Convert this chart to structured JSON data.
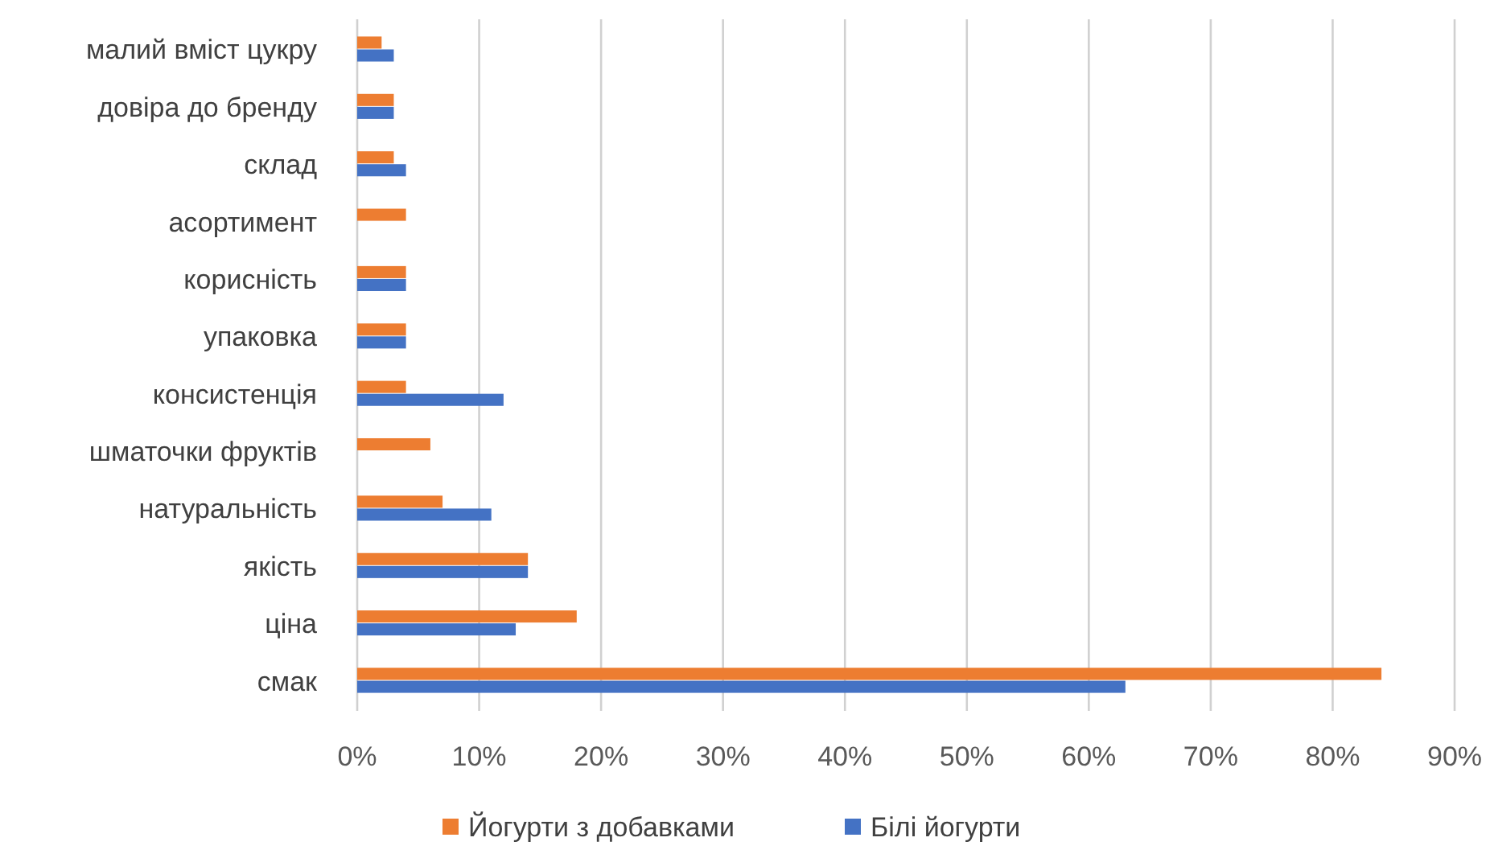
{
  "chart_data": {
    "type": "bar",
    "orientation": "horizontal",
    "categories": [
      "малий вміст цукру",
      "довіра до бренду",
      "склад",
      "асортимент",
      "корисність",
      "упаковка",
      "консистенція",
      "шматочки фруктів",
      "натуральність",
      "якість",
      "ціна",
      "смак"
    ],
    "series": [
      {
        "name": "Йогурти з добавками",
        "color": "#ed7d31",
        "values": [
          2,
          3,
          3,
          4,
          4,
          4,
          4,
          6,
          7,
          14,
          18,
          84
        ]
      },
      {
        "name": "Білі йогурти",
        "color": "#4472c4",
        "values": [
          3,
          3,
          4,
          0,
          4,
          4,
          12,
          0,
          11,
          14,
          13,
          63
        ]
      }
    ],
    "xlim": [
      0,
      90
    ],
    "xticks": [
      {
        "value": 0,
        "label": "0%"
      },
      {
        "value": 10,
        "label": "10%"
      },
      {
        "value": 20,
        "label": "20%"
      },
      {
        "value": 30,
        "label": "30%"
      },
      {
        "value": 40,
        "label": "40%"
      },
      {
        "value": 50,
        "label": "50%"
      },
      {
        "value": 60,
        "label": "60%"
      },
      {
        "value": 70,
        "label": "70%"
      },
      {
        "value": 80,
        "label": "80%"
      },
      {
        "value": 90,
        "label": "90%"
      }
    ],
    "grid": "x",
    "legend": "bottom"
  }
}
